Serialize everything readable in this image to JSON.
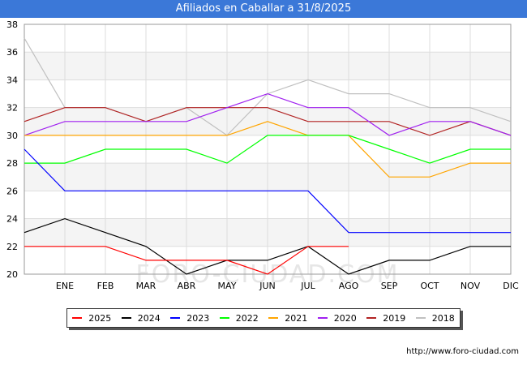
{
  "header": {
    "title": "Afiliados en Caballar a 31/8/2025"
  },
  "watermark": "FORO-CIUDAD.COM",
  "source": "http://www.foro-ciudad.com",
  "chart_data": {
    "type": "line",
    "title": "Afiliados en Caballar a 31/8/2025",
    "xlabel": "",
    "ylabel": "",
    "categories": [
      "",
      "ENE",
      "FEB",
      "MAR",
      "ABR",
      "MAY",
      "JUN",
      "JUL",
      "AGO",
      "SEP",
      "OCT",
      "NOV",
      "DIC"
    ],
    "ylim": [
      20,
      38
    ],
    "yticks": [
      20,
      22,
      24,
      26,
      28,
      30,
      32,
      34,
      36,
      38
    ],
    "legend_position": "bottom",
    "series": [
      {
        "name": "2025",
        "color": "#ff0000",
        "values": [
          22,
          22,
          22,
          21,
          21,
          21,
          20,
          22,
          22,
          null,
          null,
          null,
          null
        ]
      },
      {
        "name": "2024",
        "color": "#000000",
        "values": [
          23,
          24,
          23,
          22,
          20,
          21,
          21,
          22,
          20,
          21,
          21,
          22,
          22
        ]
      },
      {
        "name": "2023",
        "color": "#0000ff",
        "values": [
          29,
          26,
          26,
          26,
          26,
          26,
          26,
          26,
          23,
          23,
          23,
          23,
          23
        ]
      },
      {
        "name": "2022",
        "color": "#00ff00",
        "values": [
          28,
          28,
          29,
          29,
          29,
          28,
          30,
          30,
          30,
          29,
          28,
          29,
          29
        ]
      },
      {
        "name": "2021",
        "color": "#ffa500",
        "values": [
          30,
          30,
          30,
          30,
          30,
          30,
          31,
          30,
          30,
          27,
          27,
          28,
          28
        ]
      },
      {
        "name": "2020",
        "color": "#a020f0",
        "values": [
          30,
          31,
          31,
          31,
          31,
          32,
          33,
          32,
          32,
          30,
          31,
          31,
          30
        ]
      },
      {
        "name": "2019",
        "color": "#b22222",
        "values": [
          31,
          32,
          32,
          31,
          32,
          32,
          32,
          31,
          31,
          31,
          30,
          31,
          30
        ]
      },
      {
        "name": "2018",
        "color": "#c0c0c0",
        "values": [
          37,
          32,
          32,
          31,
          32,
          30,
          33,
          34,
          33,
          33,
          32,
          32,
          31
        ]
      }
    ]
  }
}
